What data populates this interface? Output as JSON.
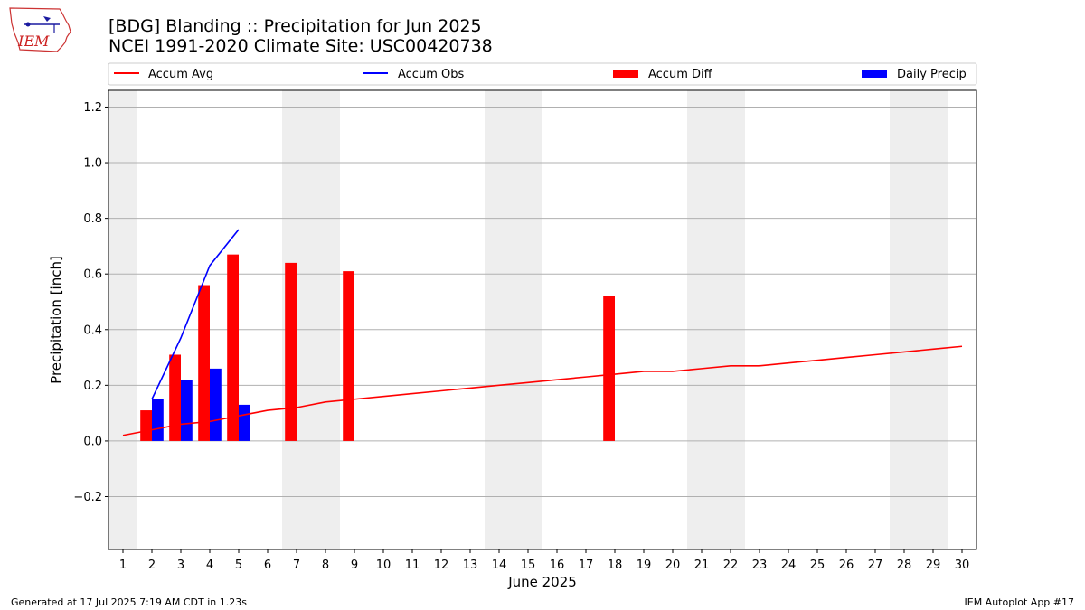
{
  "header": {
    "title": "[BDG] Blanding :: Precipitation for Jun 2025",
    "subtitle": "NCEI 1991-2020 Climate Site: USC00420738",
    "logo_text": "IEM"
  },
  "footer": {
    "left": "Generated at 17 Jul 2025 7:19 AM CDT in 1.23s",
    "right": "IEM Autoplot App #17"
  },
  "chart_data": {
    "type": "bar",
    "title": "[BDG] Blanding :: Precipitation for Jun 2025",
    "xlabel": "June 2025",
    "ylabel": "Precipitation [inch]",
    "xlim": [
      0.5,
      30.5
    ],
    "ylim": [
      -0.39,
      1.26
    ],
    "grid": "horizontal",
    "legend_placement": "top, above plot",
    "x_ticks": [
      1,
      2,
      3,
      4,
      5,
      6,
      7,
      8,
      9,
      10,
      11,
      12,
      13,
      14,
      15,
      16,
      17,
      18,
      19,
      20,
      21,
      22,
      23,
      24,
      25,
      26,
      27,
      28,
      29,
      30
    ],
    "y_ticks": [
      -0.2,
      0.0,
      0.2,
      0.4,
      0.6,
      0.8,
      1.0,
      1.2
    ],
    "y_tick_labels": [
      "−0.2",
      "0.0",
      "0.2",
      "0.4",
      "0.6",
      "0.8",
      "1.0",
      "1.2"
    ],
    "weekend_days": [
      1,
      7,
      8,
      14,
      15,
      21,
      22,
      28,
      29
    ],
    "series": [
      {
        "name": "Accum Avg",
        "kind": "line",
        "color": "#ff0000",
        "x": [
          1,
          2,
          3,
          4,
          5,
          6,
          7,
          8,
          9,
          10,
          11,
          12,
          13,
          14,
          15,
          16,
          17,
          18,
          19,
          20,
          21,
          22,
          23,
          24,
          25,
          26,
          27,
          28,
          29,
          30
        ],
        "values": [
          0.02,
          0.04,
          0.06,
          0.07,
          0.09,
          0.11,
          0.12,
          0.14,
          0.15,
          0.16,
          0.17,
          0.18,
          0.19,
          0.2,
          0.21,
          0.22,
          0.23,
          0.24,
          0.25,
          0.25,
          0.26,
          0.27,
          0.27,
          0.28,
          0.29,
          0.3,
          0.31,
          0.32,
          0.33,
          0.34
        ]
      },
      {
        "name": "Accum Obs",
        "kind": "line",
        "color": "#0000ff",
        "x": [
          2,
          3,
          4,
          5
        ],
        "values": [
          0.15,
          0.37,
          0.63,
          0.76
        ]
      },
      {
        "name": "Accum Diff",
        "kind": "bar",
        "color": "#ff0000",
        "x": [
          2,
          3,
          4,
          5,
          7,
          9,
          18
        ],
        "values": [
          0.11,
          0.31,
          0.56,
          0.67,
          0.64,
          0.61,
          0.52
        ]
      },
      {
        "name": "Daily Precip",
        "kind": "bar",
        "color": "#0000ff",
        "x": [
          2,
          3,
          4,
          5
        ],
        "values": [
          0.15,
          0.22,
          0.26,
          0.13
        ]
      }
    ]
  }
}
